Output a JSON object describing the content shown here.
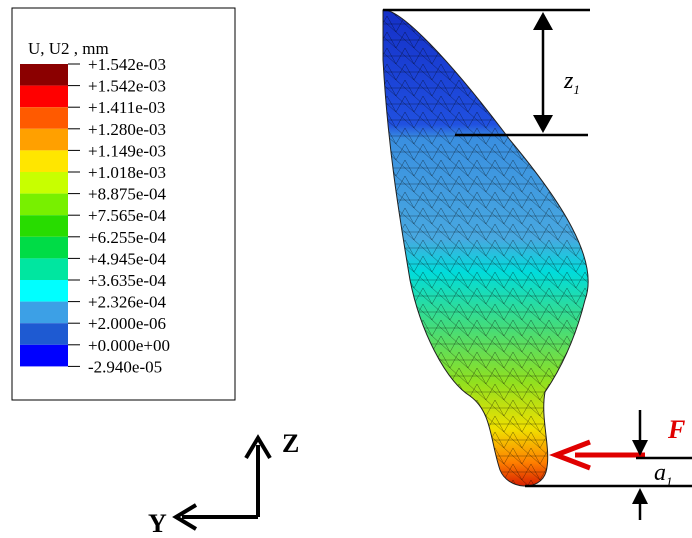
{
  "legend": {
    "title": "U, U2 , mm",
    "entries": [
      {
        "label": "+1.542e-03",
        "color": "#8b0000"
      },
      {
        "label": "+1.542e-03",
        "color": "#ff0000"
      },
      {
        "label": "+1.411e-03",
        "color": "#ff5a00"
      },
      {
        "label": "+1.280e-03",
        "color": "#ffa000"
      },
      {
        "label": "+1.149e-03",
        "color": "#ffe600"
      },
      {
        "label": "+1.018e-03",
        "color": "#c8ff00"
      },
      {
        "label": "+8.875e-04",
        "color": "#78f000"
      },
      {
        "label": "+7.565e-04",
        "color": "#28dc00"
      },
      {
        "label": "+6.255e-04",
        "color": "#00dc46"
      },
      {
        "label": "+4.945e-04",
        "color": "#00e6a0"
      },
      {
        "label": "+3.635e-04",
        "color": "#00ffff"
      },
      {
        "label": "+2.326e-04",
        "color": "#3ca0e6"
      },
      {
        "label": "+2.000e-06",
        "color": "#1e5ad2"
      },
      {
        "label": "+0.000e+00",
        "color": "#0000ff"
      },
      {
        "label": "-2.940e-05",
        "color": "#0000ff"
      }
    ]
  },
  "annotations": {
    "z": "z",
    "z_sub": "1",
    "force": "F",
    "a": "a",
    "a_sub": "1"
  },
  "axes": {
    "z": "Z",
    "y": "Y"
  }
}
